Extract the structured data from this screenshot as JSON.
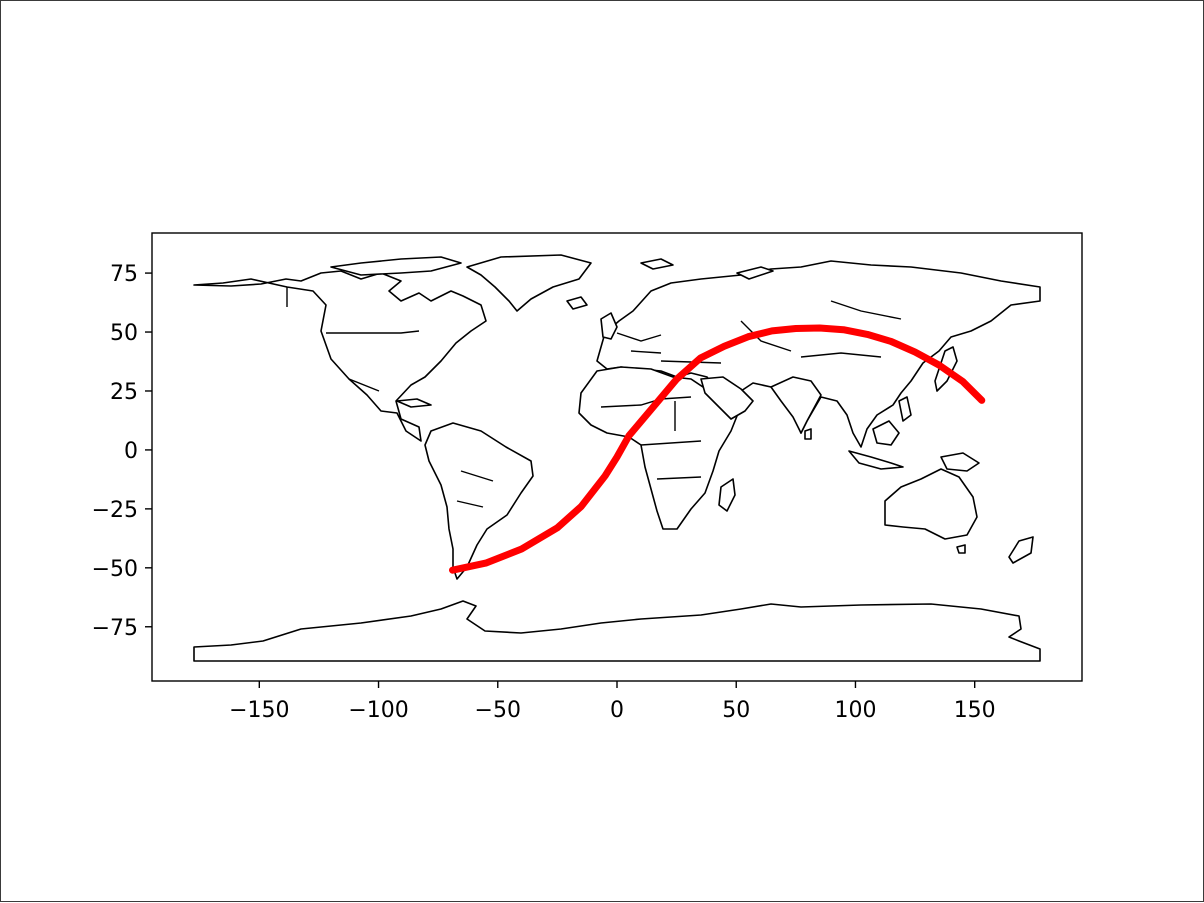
{
  "chart_data": {
    "type": "map",
    "projection": "plate-carree",
    "xlim": [
      -195,
      195
    ],
    "ylim": [
      -98,
      92
    ],
    "x_ticks": [
      -150,
      -100,
      -50,
      0,
      50,
      100,
      150
    ],
    "y_ticks": [
      -75,
      -50,
      -25,
      0,
      25,
      50,
      75
    ],
    "x_tick_labels": [
      "−150",
      "−100",
      "−50",
      "0",
      "50",
      "100",
      "150"
    ],
    "y_tick_labels": [
      "−75",
      "−50",
      "−25",
      "0",
      "25",
      "50",
      "75"
    ],
    "title": "",
    "xlabel": "",
    "ylabel": "",
    "grid": false,
    "basemap": "world country borders (black outlines, white fill)",
    "route": {
      "color": "#ff0000",
      "lon": [
        -69,
        -55,
        -40,
        -25,
        -15,
        -5,
        0,
        5,
        15,
        25,
        35,
        45,
        55,
        65,
        75,
        85,
        95,
        105,
        115,
        125,
        135,
        145,
        153
      ],
      "lat": [
        -51,
        -48,
        -42,
        -33,
        -24,
        -11,
        -3,
        6,
        18,
        30,
        39,
        44,
        48,
        50.5,
        51.5,
        51.7,
        51,
        49,
        46,
        41.5,
        36,
        29,
        21
      ]
    }
  }
}
